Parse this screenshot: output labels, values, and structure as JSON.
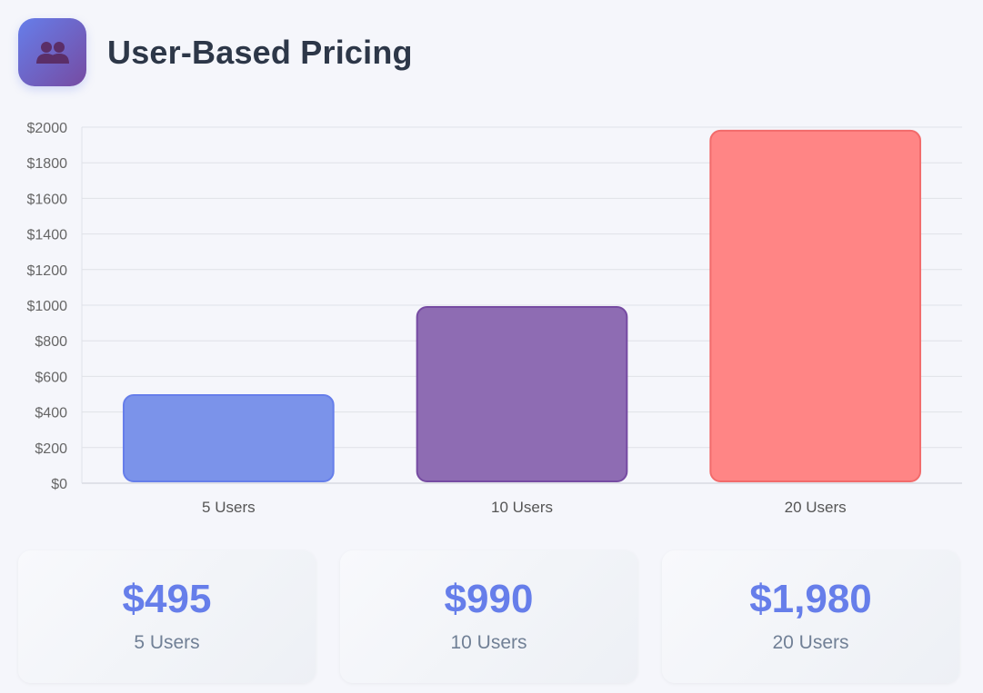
{
  "header": {
    "title": "User-Based Pricing",
    "icon": "users-icon",
    "icon_gradient": [
      "#667eea",
      "#764ba2"
    ]
  },
  "chart_data": {
    "type": "bar",
    "title": "",
    "xlabel": "",
    "ylabel": "",
    "categories": [
      "5 Users",
      "10 Users",
      "20 Users"
    ],
    "values": [
      495,
      990,
      1980
    ],
    "ylim": [
      0,
      2000
    ],
    "yticks": [
      0,
      200,
      400,
      600,
      800,
      1000,
      1200,
      1400,
      1600,
      1800,
      2000
    ],
    "ytick_labels": [
      "$0",
      "$200",
      "$400",
      "$600",
      "$800",
      "$1000",
      "$1200",
      "$1400",
      "$1600",
      "$1800",
      "$2000"
    ],
    "colors": [
      {
        "fill": "#7b93ea",
        "stroke": "#667eea"
      },
      {
        "fill": "#8e6cb3",
        "stroke": "#764ba2"
      },
      {
        "fill": "#ff8585",
        "stroke": "#f26b6b"
      }
    ],
    "grid": true,
    "legend": "none"
  },
  "summary_cards": [
    {
      "value": "$495",
      "label": "5 Users"
    },
    {
      "value": "$990",
      "label": "10 Users"
    },
    {
      "value": "$1,980",
      "label": "20 Users"
    }
  ],
  "colors": {
    "accent": "#667eea",
    "title_text": "#2d3748",
    "muted_text": "#718096",
    "background": "#f5f6fb"
  }
}
